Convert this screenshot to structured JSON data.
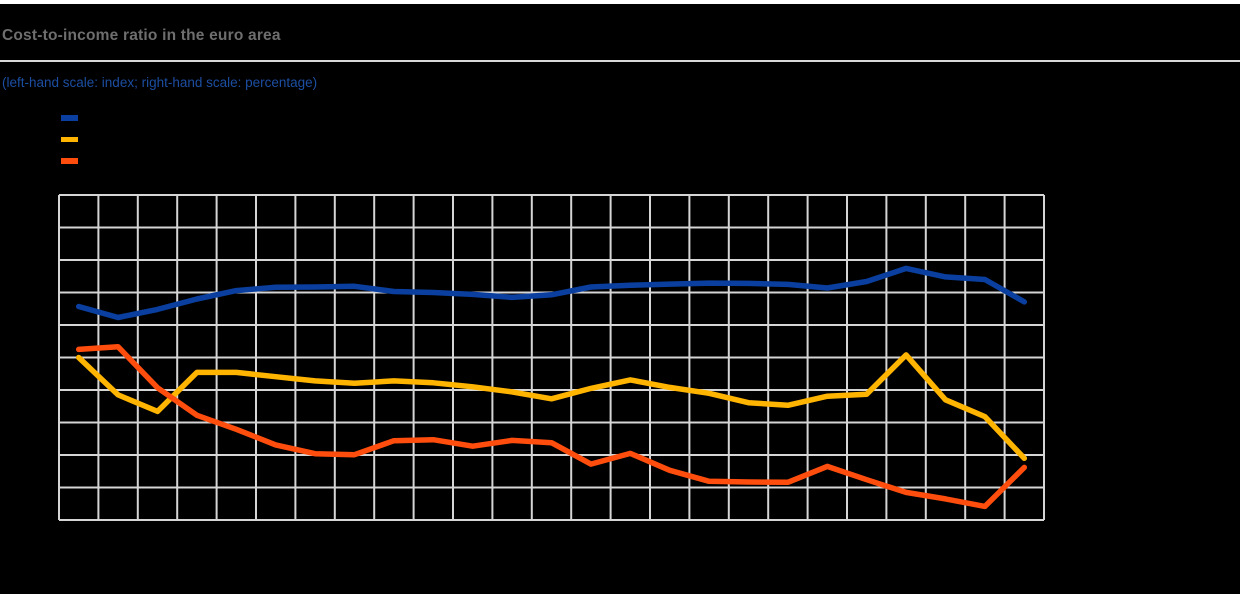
{
  "page": {
    "background_color": "#000000",
    "top_border_color": "#ffffff",
    "title_color": "#6e6e6e",
    "subtitle_color": "#1c4ea1",
    "divider_color": "#d8d8d8"
  },
  "legend": {
    "items": [
      {
        "name": "blue-series",
        "swatch_color": "#0a3f9f"
      },
      {
        "name": "amber-series",
        "swatch_color": "#ffb400"
      },
      {
        "name": "orange-series",
        "swatch_color": "#ff4d0d"
      }
    ],
    "labels_visible": false
  },
  "chart_data": {
    "type": "line",
    "title": "Cost-to-income ratio in the euro area",
    "subtitle": "(left-hand scale: index; right-hand scale: percentage)",
    "grid": {
      "visible": true,
      "columns": 25,
      "rows": 10,
      "color": "#d5d5d5"
    },
    "axes": {
      "tick_labels_visible": false,
      "note": "left-hand scale: index; right-hand scale: percentage (numeric tick labels not visible in image)"
    },
    "x_index": [
      1,
      2,
      3,
      4,
      5,
      6,
      7,
      8,
      9,
      10,
      11,
      12,
      13,
      14,
      15,
      16,
      17,
      18,
      19,
      20,
      21,
      22,
      23,
      24,
      25
    ],
    "ylim_gridunits": [
      0,
      10
    ],
    "series": [
      {
        "name": "blue-line",
        "color": "#0a3f9f",
        "values_gridunits": [
          6.57,
          6.23,
          6.48,
          6.8,
          7.06,
          7.16,
          7.17,
          7.19,
          7.03,
          7.0,
          6.94,
          6.85,
          6.93,
          7.17,
          7.22,
          7.26,
          7.29,
          7.28,
          7.25,
          7.14,
          7.34,
          7.74,
          7.48,
          7.4,
          6.71
        ]
      },
      {
        "name": "amber-line",
        "color": "#ffb400",
        "values_gridunits": [
          5.0,
          3.85,
          3.34,
          4.54,
          4.54,
          4.41,
          4.28,
          4.21,
          4.28,
          4.22,
          4.1,
          3.94,
          3.73,
          4.05,
          4.31,
          4.08,
          3.9,
          3.61,
          3.53,
          3.81,
          3.87,
          5.08,
          3.7,
          3.18,
          1.9
        ]
      },
      {
        "name": "orange-line",
        "color": "#ff4d0d",
        "values_gridunits": [
          5.25,
          5.33,
          4.07,
          3.22,
          2.79,
          2.31,
          2.04,
          2.01,
          2.44,
          2.47,
          2.27,
          2.45,
          2.38,
          1.72,
          2.05,
          1.53,
          1.19,
          1.17,
          1.16,
          1.65,
          1.24,
          0.85,
          0.65,
          0.42,
          1.62
        ]
      }
    ]
  }
}
